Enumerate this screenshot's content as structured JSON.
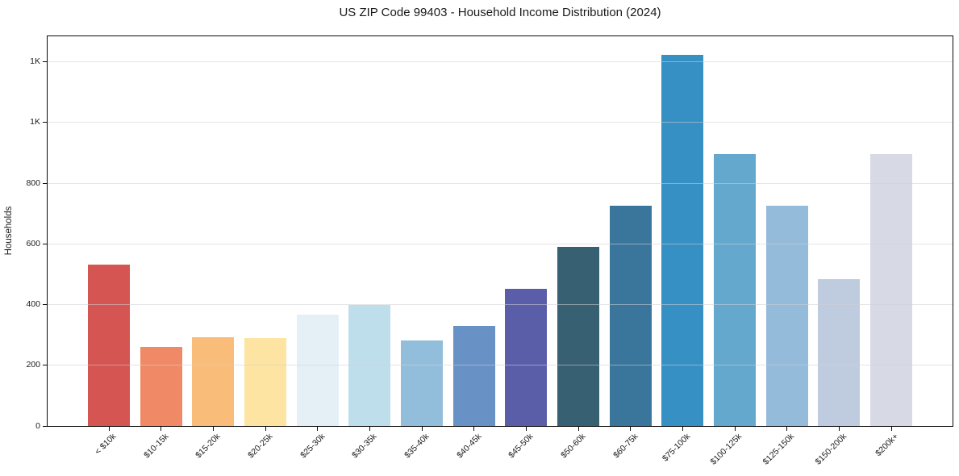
{
  "figure": {
    "title": "US ZIP Code 99403 - Household Income Distribution (2024)"
  },
  "chart_data": {
    "type": "bar",
    "title": "US ZIP Code 99403 - Household Income Distribution (2024)",
    "xlabel": "",
    "ylabel": "Households",
    "categories": [
      "< $10k",
      "$10-15k",
      "$15-20k",
      "$20-25k",
      "$25-30k",
      "$30-35k",
      "$35-40k",
      "$40-45k",
      "$45-50k",
      "$50-60k",
      "$60-75k",
      "$75-100k",
      "$100-125k",
      "$125-150k",
      "$150-200k",
      "$200k+"
    ],
    "values": [
      533,
      260,
      293,
      291,
      366,
      400,
      283,
      329,
      451,
      589,
      727,
      1222,
      897,
      727,
      483,
      895
    ],
    "bar_colors": [
      "#d45551",
      "#f08a66",
      "#fabd79",
      "#fde4a2",
      "#e4f0f6",
      "#bfdeec",
      "#93bedb",
      "#6891c6",
      "#5a5ea9",
      "#386073",
      "#3a769c",
      "#3790c4",
      "#64a8cd",
      "#94bbda",
      "#bfccdf",
      "#d7d9e5"
    ],
    "ylim": [
      0,
      1284
    ],
    "yticks": [
      {
        "value": 0,
        "label": "0"
      },
      {
        "value": 200,
        "label": "200"
      },
      {
        "value": 400,
        "label": "400"
      },
      {
        "value": 600,
        "label": "600"
      },
      {
        "value": 800,
        "label": "800"
      },
      {
        "value": 1000,
        "label": "1K"
      },
      {
        "value": 1200,
        "label": "1K"
      }
    ],
    "grid": "horizontal",
    "legend": "none"
  }
}
